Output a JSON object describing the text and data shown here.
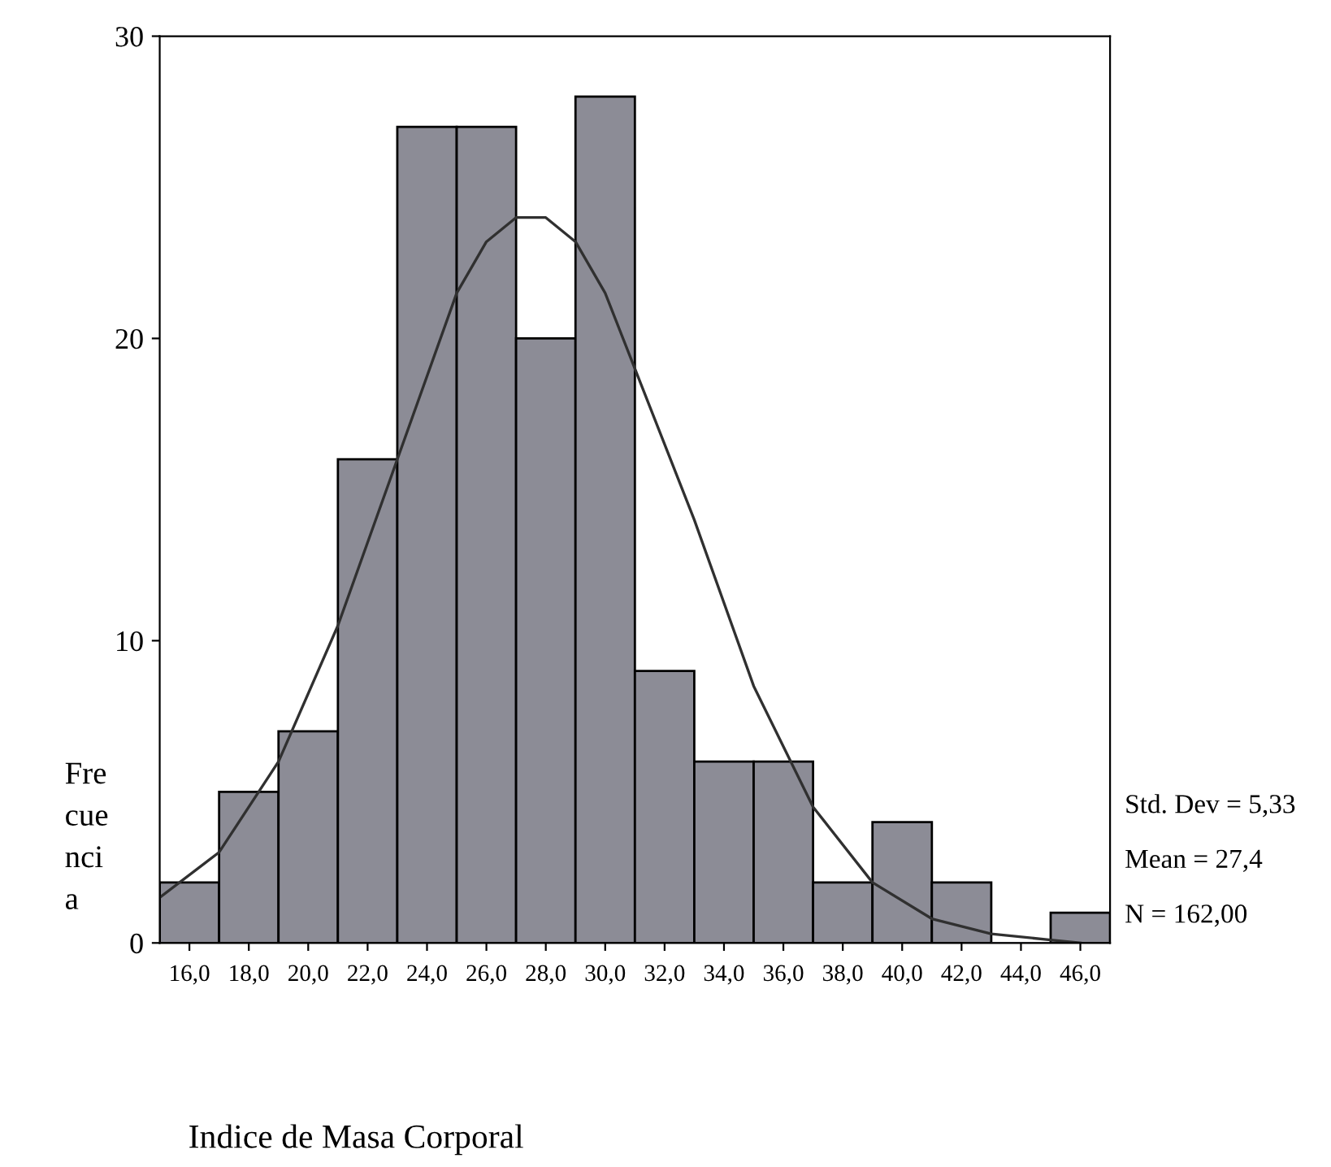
{
  "chart_data": {
    "type": "histogram",
    "xlabel": "Indice de Masa Corporal",
    "ylabel": "Fre\ncue\nnci\na",
    "bins": [
      15,
      17,
      19,
      21,
      23,
      25,
      27,
      29,
      31,
      33,
      35,
      37,
      39,
      41,
      43,
      45,
      47
    ],
    "values": [
      2,
      5,
      7,
      16,
      27,
      27,
      20,
      28,
      9,
      6,
      6,
      2,
      4,
      2,
      0,
      1
    ],
    "color": "#8c8c96",
    "series": [
      {
        "type": "line",
        "color": "#303030",
        "x": [
          15,
          17,
          19,
          21,
          23,
          25,
          26,
          27,
          28,
          29,
          30,
          31,
          33,
          35,
          37,
          39,
          41,
          43,
          45,
          46
        ],
        "values": [
          1.5,
          3,
          6,
          10.5,
          16,
          21.5,
          23.2,
          24,
          24,
          23.2,
          21.5,
          19,
          14,
          8.5,
          4.5,
          2,
          0.8,
          0.3,
          0.1,
          0
        ]
      }
    ],
    "xlim": [
      15,
      47
    ],
    "xticks": [
      {
        "value": 16,
        "label": "16,0"
      },
      {
        "value": 18,
        "label": "18,0"
      },
      {
        "value": 20,
        "label": "20,0"
      },
      {
        "value": 22,
        "label": "22,0"
      },
      {
        "value": 24,
        "label": "24,0"
      },
      {
        "value": 26,
        "label": "26,0"
      },
      {
        "value": 28,
        "label": "28,0"
      },
      {
        "value": 30,
        "label": "30,0"
      },
      {
        "value": 32,
        "label": "32,0"
      },
      {
        "value": 34,
        "label": "34,0"
      },
      {
        "value": 36,
        "label": "36,0"
      },
      {
        "value": 38,
        "label": "38,0"
      },
      {
        "value": 40,
        "label": "40,0"
      },
      {
        "value": 42,
        "label": "42,0"
      },
      {
        "value": 44,
        "label": "44,0"
      },
      {
        "value": 46,
        "label": "46,0"
      }
    ],
    "ylim": [
      0,
      30
    ],
    "yticks": [
      0,
      10,
      20,
      30
    ],
    "annotations": [
      "Std. Dev = 5,33",
      "Mean = 27,4",
      "N = 162,00"
    ]
  }
}
